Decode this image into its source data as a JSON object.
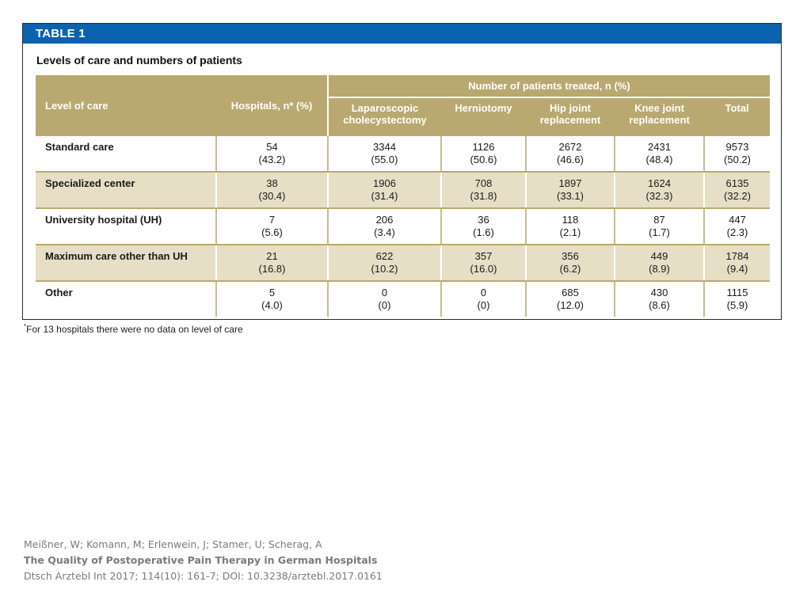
{
  "table": {
    "label": "TABLE 1",
    "caption": "Levels of care and numbers of patients",
    "headers": {
      "level": "Level of care",
      "hospitals": "Hospitals, n* (%)",
      "group": "Number of patients treated, n (%)",
      "lap": "Laparoscopic cholecystectomy",
      "hern": "Herniotomy",
      "hip": "Hip joint replacement",
      "knee": "Knee joint replacement",
      "total": "Total"
    },
    "rows": [
      {
        "level": "Standard care",
        "hosp_n": "54",
        "hosp_p": "(43.2)",
        "lap_n": "3344",
        "lap_p": "(55.0)",
        "hern_n": "1126",
        "hern_p": "(50.6)",
        "hip_n": "2672",
        "hip_p": "(46.6)",
        "knee_n": "2431",
        "knee_p": "(48.4)",
        "total_n": "9573",
        "total_p": "(50.2)"
      },
      {
        "level": "Specialized center",
        "hosp_n": "38",
        "hosp_p": "(30.4)",
        "lap_n": "1906",
        "lap_p": "(31.4)",
        "hern_n": "708",
        "hern_p": "(31.8)",
        "hip_n": "1897",
        "hip_p": "(33.1)",
        "knee_n": "1624",
        "knee_p": "(32.3)",
        "total_n": "6135",
        "total_p": "(32.2)"
      },
      {
        "level": "University hospital (UH)",
        "hosp_n": "7",
        "hosp_p": "(5.6)",
        "lap_n": "206",
        "lap_p": "(3.4)",
        "hern_n": "36",
        "hern_p": "(1.6)",
        "hip_n": "118",
        "hip_p": "(2.1)",
        "knee_n": "87",
        "knee_p": "(1.7)",
        "total_n": "447",
        "total_p": "(2.3)"
      },
      {
        "level": "Maximum care other than UH",
        "hosp_n": "21",
        "hosp_p": "(16.8)",
        "lap_n": "622",
        "lap_p": "(10.2)",
        "hern_n": "357",
        "hern_p": "(16.0)",
        "hip_n": "356",
        "hip_p": "(6.2)",
        "knee_n": "449",
        "knee_p": "(8.9)",
        "total_n": "1784",
        "total_p": "(9.4)"
      },
      {
        "level": "Other",
        "hosp_n": "5",
        "hosp_p": "(4.0)",
        "lap_n": "0",
        "lap_p": "(0)",
        "hern_n": "0",
        "hern_p": "(0)",
        "hip_n": "685",
        "hip_p": "(12.0)",
        "knee_n": "430",
        "knee_p": "(8.6)",
        "total_n": "1115",
        "total_p": "(5.9)"
      }
    ],
    "footnote_marker": "*",
    "footnote": "For 13 hospitals there were no data on level of care"
  },
  "citation": {
    "authors": "Meißner, W; Komann, M; Erlenwein, J; Stamer, U; Scherag, A",
    "title": "The Quality of Postoperative Pain Therapy in German Hospitals",
    "source": "Dtsch Arztebl Int 2017; 114(10): 161-7; DOI: 10.3238/arztebl.2017.0161"
  },
  "colors": {
    "label_bar": "#0b63ae",
    "header_bg": "#b9a870",
    "even_row_bg": "#e6dfc6",
    "citation_text": "#7a7a7a"
  }
}
